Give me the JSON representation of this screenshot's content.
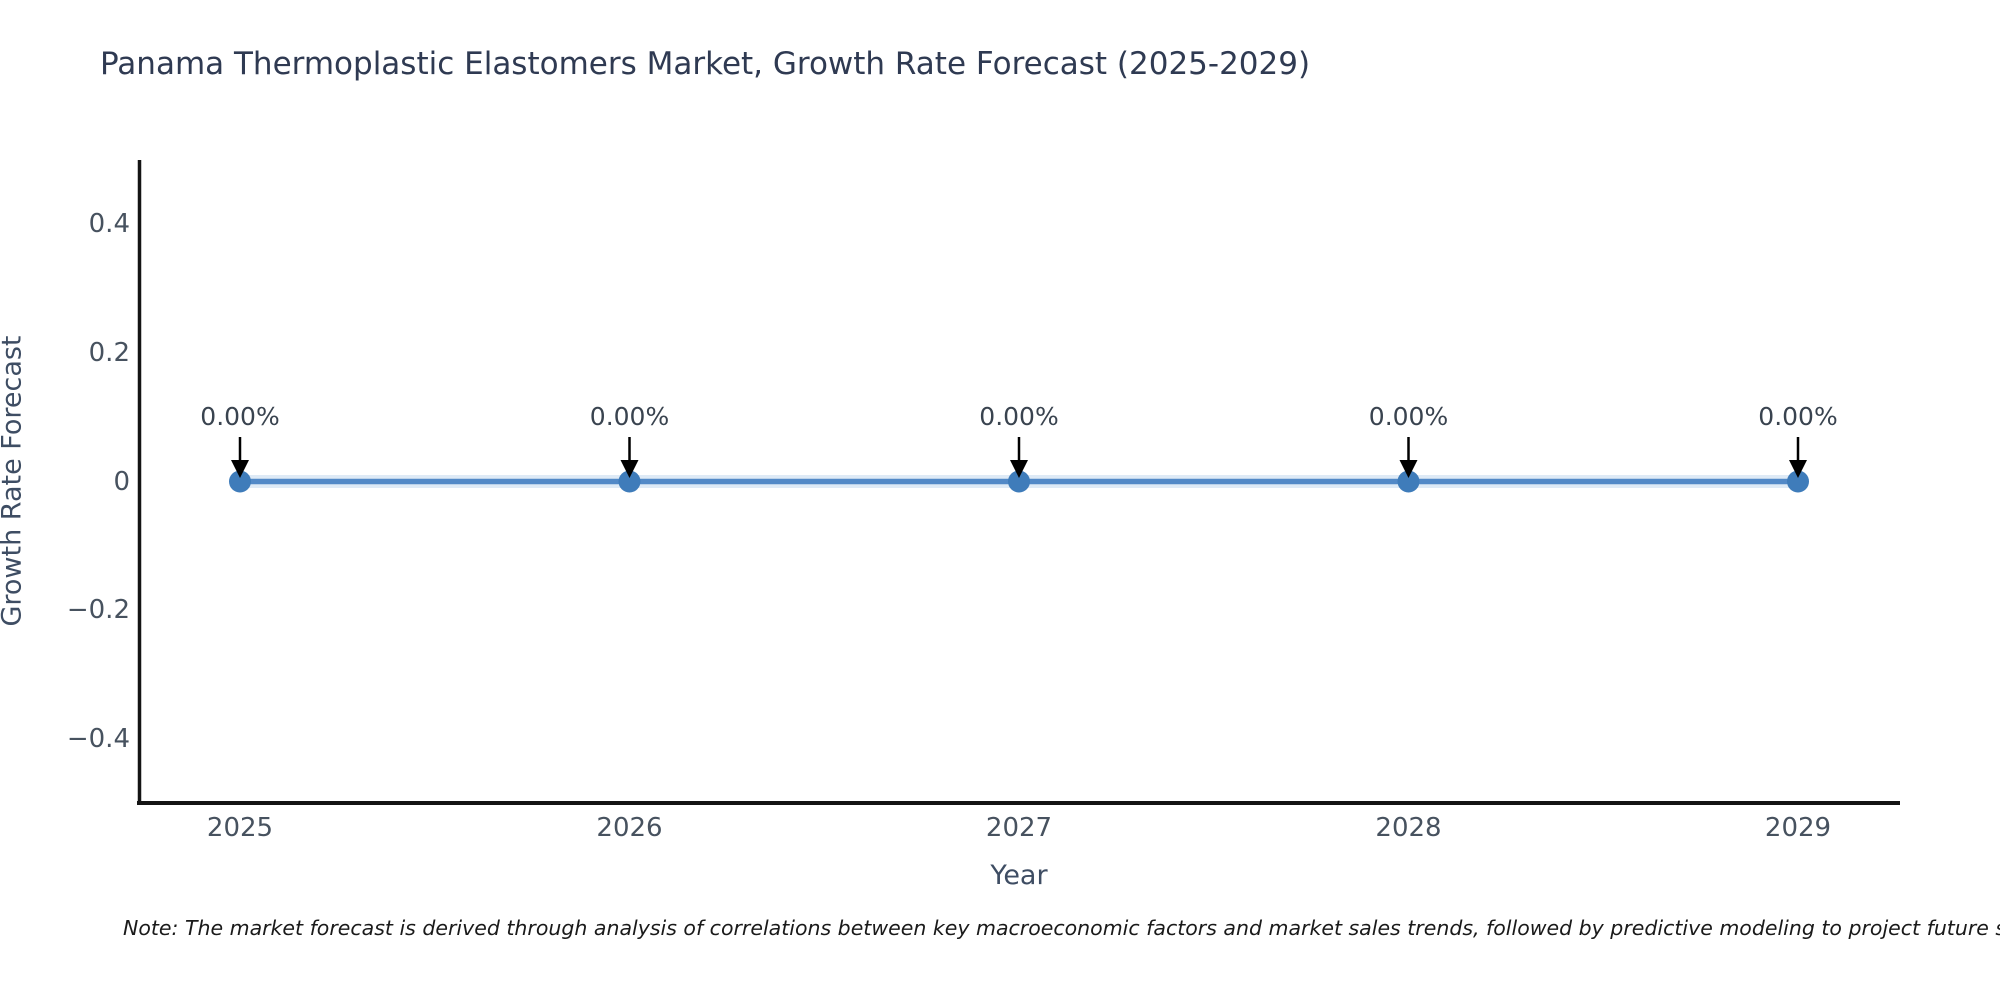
{
  "title": "Panama Thermoplastic Elastomers Market, Growth Rate Forecast (2025-2029)",
  "note": "Note: The market forecast is derived through analysis of correlations between key macroeconomic factors and market sales trends, followed by predictive modeling to project future sa",
  "chart_data": {
    "type": "line",
    "title": "Panama Thermoplastic Elastomers Market, Growth Rate Forecast (2025-2029)",
    "x": [
      "2025",
      "2026",
      "2027",
      "2028",
      "2029"
    ],
    "series": [
      {
        "name": "Growth Rate Forecast",
        "values": [
          0,
          0,
          0,
          0,
          0
        ],
        "point_labels": [
          "0.00%",
          "0.00%",
          "0.00%",
          "0.00%",
          "0.00%"
        ]
      }
    ],
    "xlabel": "Year",
    "ylabel": "Growth Rate Forecast",
    "ylim": [
      -0.5,
      0.5
    ],
    "ytick_values": [
      0.4,
      0.2,
      0,
      -0.2,
      -0.4
    ],
    "ytick_labels": [
      "0.4",
      "0.2",
      "0",
      "−0.2",
      "−0.4"
    ],
    "grid": false,
    "legend": "none",
    "annotations_have_arrows": true
  },
  "colors": {
    "line": "#5289c7",
    "line_halo": "#d8e6f4",
    "marker": "#3f7cba",
    "arrow": "#000000",
    "spine": "#141414",
    "title": "#2f3a52",
    "tick_label": "#47525f",
    "axis_title": "#3e4d63",
    "annotation": "#39434f",
    "note": "#1a1a1a"
  }
}
